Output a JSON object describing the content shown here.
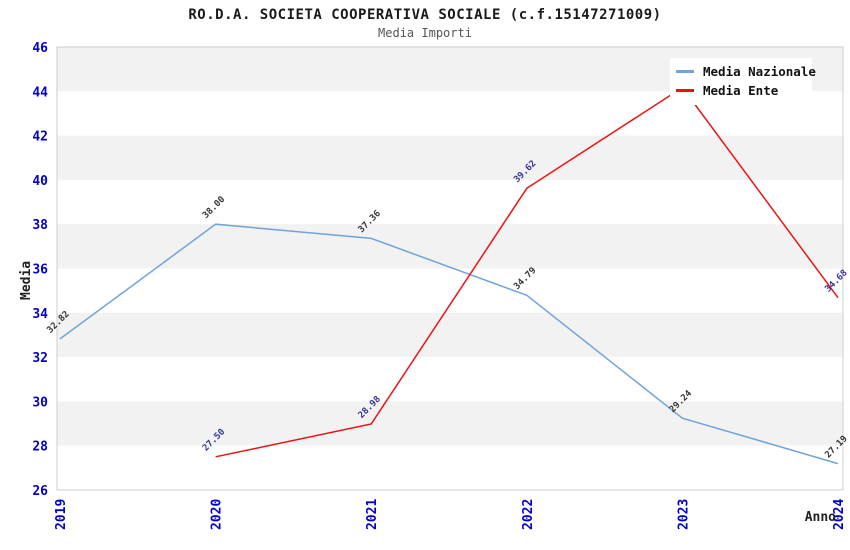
{
  "chart_data": {
    "type": "line",
    "title": "RO.D.A. SOCIETA COOPERATIVA SOCIALE (c.f.15147271009)",
    "subtitle": "Media Importi",
    "categories": [
      "2019",
      "2020",
      "2021",
      "2022",
      "2023",
      "2024"
    ],
    "series": [
      {
        "name": "Media Nazionale",
        "color": "#6fa4dc",
        "label_color": "#333333",
        "values": [
          32.82,
          38.0,
          37.36,
          34.79,
          29.24,
          27.19
        ],
        "labels": [
          "32.82",
          "38.00",
          "37.36",
          "34.79",
          "29.24",
          "27.19"
        ]
      },
      {
        "name": "Media Ente",
        "color": "#ee1111",
        "label_color": "#333399",
        "values": [
          null,
          27.5,
          28.98,
          39.62,
          44.17,
          34.68
        ],
        "labels": [
          null,
          "27.50",
          "28.98",
          "39.62",
          null,
          "34.68"
        ]
      }
    ],
    "xlabel": "Anno",
    "ylabel": "Media",
    "ylim": [
      26,
      46
    ],
    "ytick_step": 2,
    "yticks": [
      26,
      28,
      30,
      32,
      34,
      36,
      38,
      40,
      42,
      44,
      46
    ],
    "grid": "horizontal-alternating-bands",
    "legend_position": "top-right"
  },
  "colors": {
    "band_gray": "#f2f2f2",
    "band_white": "#ffffff",
    "plot_border": "#cccccc",
    "tick_label_blue": "#0000cc",
    "axis_label_dark": "#222222",
    "title_dark": "#1a1a1a",
    "subtitle_gray": "#555555"
  }
}
